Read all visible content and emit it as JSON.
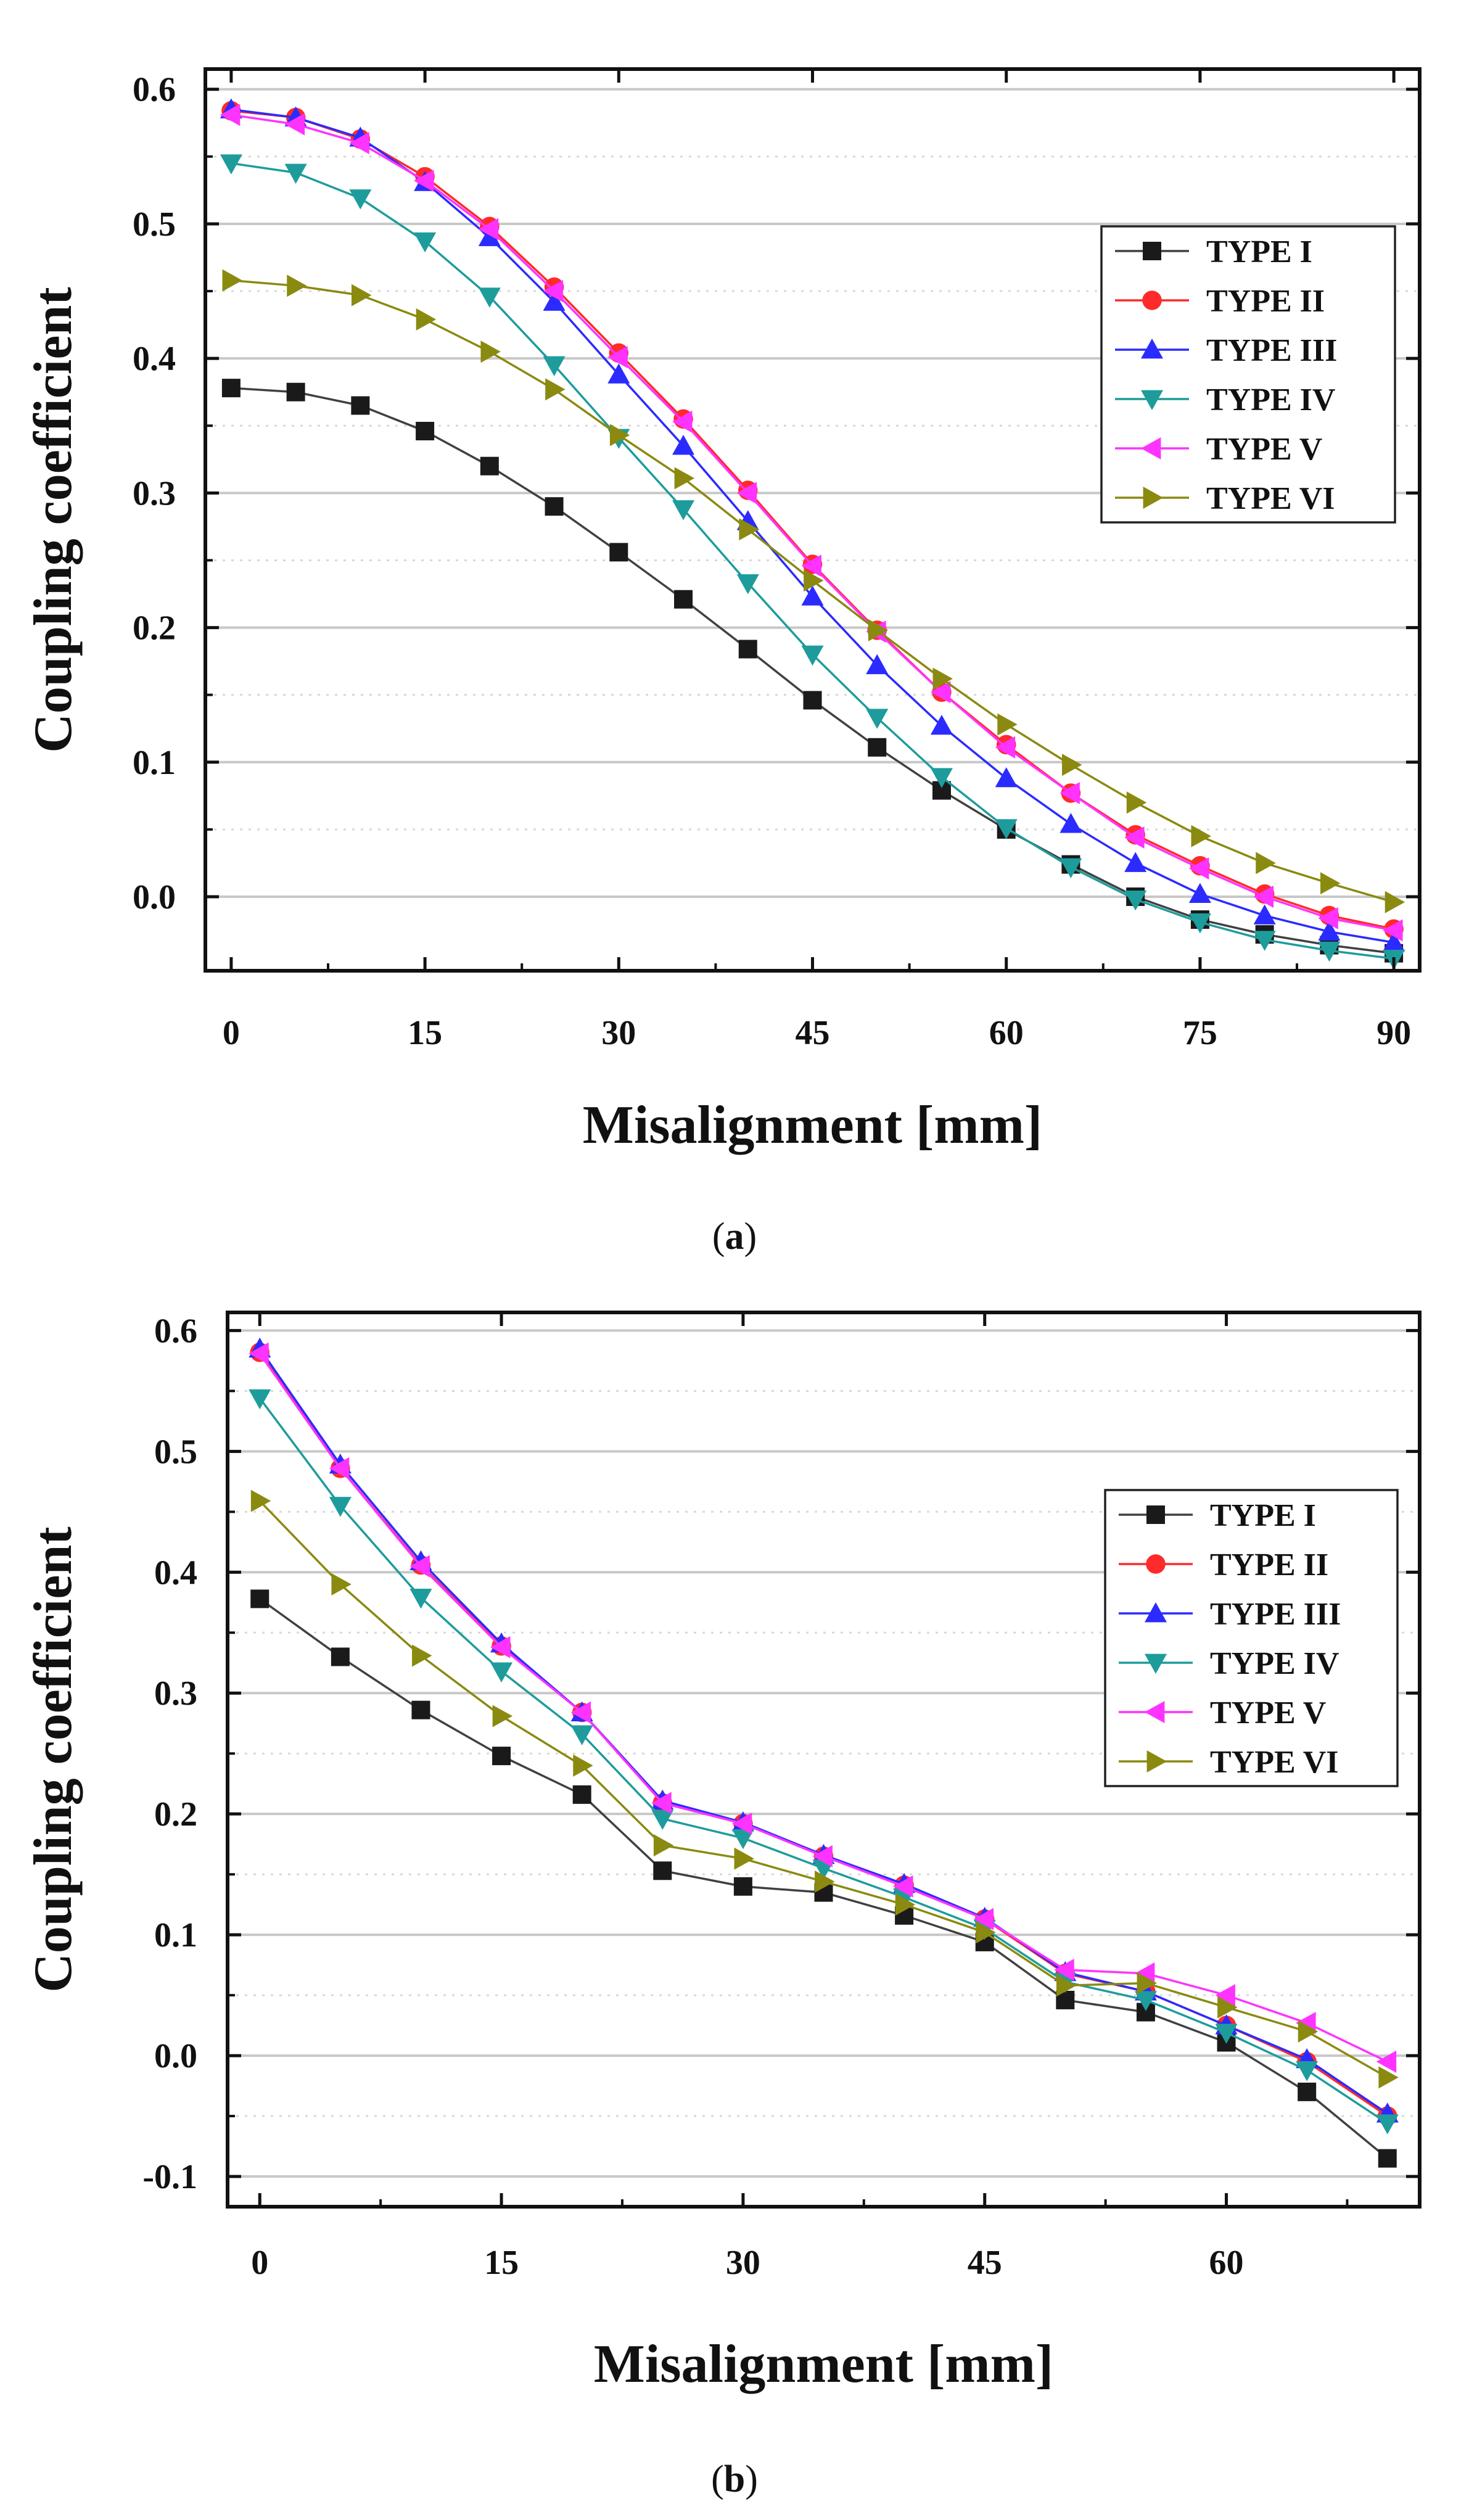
{
  "chart_data": [
    {
      "type": "line",
      "caption": "(a)",
      "caption_letter": "a",
      "title": "",
      "xlabel": "Misalignment [mm]",
      "ylabel": "Coupling coefficient",
      "xlim": [
        -2,
        92
      ],
      "ylim": [
        -0.055,
        0.615
      ],
      "xticks": [
        0,
        15,
        30,
        45,
        60,
        75,
        90
      ],
      "yticks": [
        0.0,
        0.1,
        0.2,
        0.3,
        0.4,
        0.5,
        0.6
      ],
      "ytick_labels": [
        "0.0",
        "0.1",
        "0.2",
        "0.3",
        "0.4",
        "0.5",
        "0.6"
      ],
      "x": [
        0,
        5,
        10,
        15,
        20,
        25,
        30,
        35,
        40,
        45,
        50,
        55,
        60,
        65,
        70,
        75,
        80,
        85,
        90
      ],
      "legend_position": "center-right",
      "series": [
        {
          "name": "TYPE I",
          "color": "#1a1a1a",
          "marker": "square",
          "values": [
            0.378,
            0.375,
            0.365,
            0.346,
            0.32,
            0.29,
            0.256,
            0.221,
            0.184,
            0.146,
            0.111,
            0.079,
            0.05,
            0.024,
            0.0,
            -0.017,
            -0.028,
            -0.036,
            -0.042
          ]
        },
        {
          "name": "TYPE II",
          "color": "#ff2a2a",
          "marker": "circle",
          "values": [
            0.584,
            0.579,
            0.563,
            0.535,
            0.498,
            0.453,
            0.404,
            0.355,
            0.302,
            0.247,
            0.198,
            0.152,
            0.113,
            0.077,
            0.046,
            0.023,
            0.002,
            -0.014,
            -0.024
          ]
        },
        {
          "name": "TYPE III",
          "color": "#2b2bff",
          "marker": "triangle-up",
          "values": [
            0.585,
            0.579,
            0.564,
            0.531,
            0.49,
            0.442,
            0.388,
            0.335,
            0.279,
            0.223,
            0.172,
            0.127,
            0.088,
            0.054,
            0.025,
            0.002,
            -0.014,
            -0.026,
            -0.034
          ]
        },
        {
          "name": "TYPE IV",
          "color": "#1e9c9c",
          "marker": "triangle-down",
          "values": [
            0.545,
            0.538,
            0.519,
            0.487,
            0.446,
            0.395,
            0.341,
            0.288,
            0.233,
            0.18,
            0.133,
            0.089,
            0.051,
            0.022,
            -0.002,
            -0.019,
            -0.032,
            -0.04,
            -0.046
          ]
        },
        {
          "name": "TYPE V",
          "color": "#ff33ff",
          "marker": "triangle-left",
          "values": [
            0.581,
            0.574,
            0.56,
            0.532,
            0.496,
            0.45,
            0.401,
            0.353,
            0.3,
            0.246,
            0.197,
            0.152,
            0.111,
            0.077,
            0.044,
            0.021,
            0.0,
            -0.016,
            -0.025
          ]
        },
        {
          "name": "TYPE VI",
          "color": "#8a8a10",
          "marker": "triangle-right",
          "values": [
            0.458,
            0.454,
            0.447,
            0.429,
            0.405,
            0.377,
            0.343,
            0.311,
            0.273,
            0.235,
            0.198,
            0.162,
            0.128,
            0.098,
            0.07,
            0.045,
            0.025,
            0.01,
            -0.004
          ]
        }
      ]
    },
    {
      "type": "line",
      "caption": "(b)",
      "caption_letter": "b",
      "title": "",
      "xlabel": "Misalignment [mm]",
      "ylabel": "Coupling coefficient",
      "xlim": [
        -2,
        72
      ],
      "ylim": [
        -0.125,
        0.615
      ],
      "xticks": [
        0,
        15,
        30,
        45,
        60
      ],
      "yticks": [
        -0.1,
        0.0,
        0.1,
        0.2,
        0.3,
        0.4,
        0.5,
        0.6
      ],
      "ytick_labels": [
        "-0.1",
        "0.0",
        "0.1",
        "0.2",
        "0.3",
        "0.4",
        "0.5",
        "0.6"
      ],
      "x": [
        0,
        5,
        10,
        15,
        20,
        25,
        30,
        35,
        40,
        45,
        50,
        55,
        60,
        65,
        70
      ],
      "legend_position": "center-right",
      "series": [
        {
          "name": "TYPE I",
          "color": "#1a1a1a",
          "marker": "square",
          "values": [
            0.378,
            0.33,
            0.286,
            0.248,
            0.216,
            0.153,
            0.14,
            0.135,
            0.116,
            0.094,
            0.046,
            0.036,
            0.011,
            -0.03,
            -0.085
          ]
        },
        {
          "name": "TYPE II",
          "color": "#ff2a2a",
          "marker": "circle",
          "values": [
            0.582,
            0.486,
            0.406,
            0.339,
            0.284,
            0.209,
            0.192,
            0.165,
            0.141,
            0.113,
            0.068,
            0.053,
            0.025,
            -0.005,
            -0.05
          ]
        },
        {
          "name": "TYPE III",
          "color": "#2b2bff",
          "marker": "triangle-up",
          "values": [
            0.585,
            0.489,
            0.409,
            0.341,
            0.284,
            0.211,
            0.193,
            0.166,
            0.142,
            0.114,
            0.069,
            0.053,
            0.025,
            -0.003,
            -0.048
          ]
        },
        {
          "name": "TYPE IV",
          "color": "#1e9c9c",
          "marker": "triangle-down",
          "values": [
            0.544,
            0.455,
            0.379,
            0.318,
            0.266,
            0.196,
            0.18,
            0.155,
            0.131,
            0.105,
            0.061,
            0.046,
            0.019,
            -0.012,
            -0.056
          ]
        },
        {
          "name": "TYPE V",
          "color": "#ff33ff",
          "marker": "triangle-left",
          "values": [
            0.581,
            0.486,
            0.405,
            0.338,
            0.284,
            0.209,
            0.192,
            0.165,
            0.14,
            0.113,
            0.071,
            0.068,
            0.05,
            0.027,
            -0.005
          ]
        },
        {
          "name": "TYPE VI",
          "color": "#8a8a10",
          "marker": "triangle-right",
          "values": [
            0.459,
            0.39,
            0.331,
            0.281,
            0.24,
            0.174,
            0.163,
            0.144,
            0.125,
            0.102,
            0.058,
            0.06,
            0.04,
            0.02,
            -0.018
          ]
        }
      ]
    }
  ]
}
